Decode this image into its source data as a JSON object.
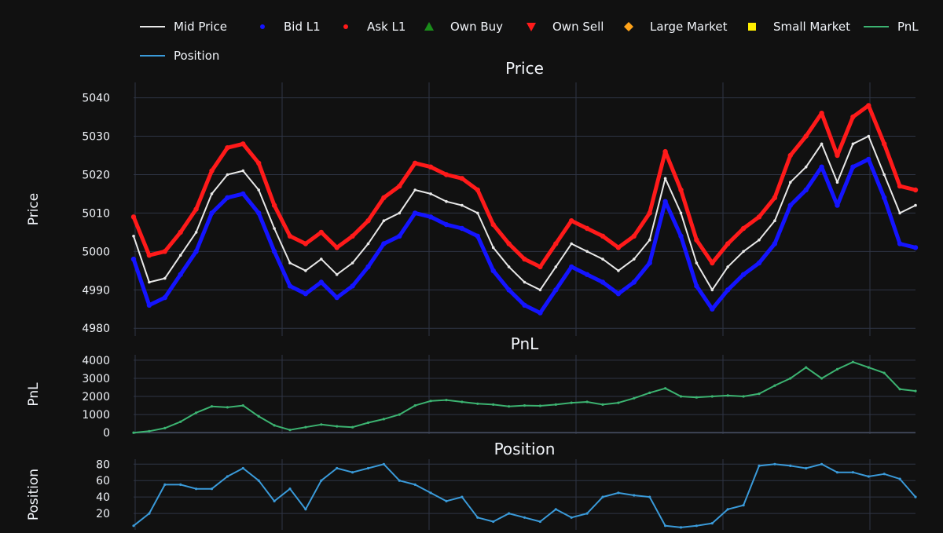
{
  "colors": {
    "page_bg": "#111111",
    "plot_bg": "#111111",
    "grid": "#2f3545",
    "text": "#f2f5fa",
    "mid": "#e8e8e8",
    "bid": "#1414ff",
    "ask": "#ff1a1a",
    "own_buy": "#1a8c1a",
    "own_sell": "#ff1a1a",
    "large_market": "#ffa31a",
    "small_market": "#ffee00",
    "pnl": "#3cb371",
    "position": "#3a9ad9"
  },
  "legend": [
    {
      "label": "Mid Price",
      "marker": "line",
      "color": "#e8e8e8"
    },
    {
      "label": "Bid L1",
      "marker": "dot",
      "color": "#1414ff"
    },
    {
      "label": "Ask L1",
      "marker": "dot",
      "color": "#ff1a1a"
    },
    {
      "label": "Own Buy",
      "marker": "triangle-up",
      "color": "#1a8c1a"
    },
    {
      "label": "Own Sell",
      "marker": "triangle-down",
      "color": "#ff1a1a"
    },
    {
      "label": "Large Market",
      "marker": "diamond",
      "color": "#ffa31a"
    },
    {
      "label": "Small Market",
      "marker": "square",
      "color": "#ffee00"
    },
    {
      "label": "PnL",
      "marker": "line",
      "color": "#3cb371"
    },
    {
      "label": "Position",
      "marker": "line",
      "color": "#3a9ad9"
    }
  ],
  "chart_data": [
    {
      "type": "line",
      "title": "Price",
      "ylabel": "Price",
      "ylim": [
        4978,
        5044
      ],
      "yticks": [
        4980,
        4990,
        5000,
        5010,
        5020,
        5030,
        5040
      ],
      "xlim": [
        0,
        100
      ],
      "grid": true,
      "series": [
        {
          "name": "Mid Price",
          "x": [
            0,
            2,
            4,
            6,
            8,
            10,
            12,
            14,
            16,
            18,
            20,
            22,
            24,
            26,
            28,
            30,
            32,
            34,
            36,
            38,
            40,
            42,
            44,
            46,
            48,
            50,
            52,
            54,
            56,
            58,
            60,
            62,
            64,
            66,
            68,
            70,
            72,
            74,
            76,
            78,
            80,
            82,
            84,
            86,
            88,
            90,
            92,
            94,
            96,
            98,
            100
          ],
          "values": [
            5004,
            4992,
            4993,
            4999,
            5005,
            5015,
            5020,
            5021,
            5016,
            5006,
            4997,
            4995,
            4998,
            4994,
            4997,
            5002,
            5008,
            5010,
            5016,
            5015,
            5013,
            5012,
            5010,
            5001,
            4996,
            4992,
            4990,
            4996,
            5002,
            5000,
            4998,
            4995,
            4998,
            5003,
            5019,
            5010,
            4997,
            4990,
            4996,
            5000,
            5003,
            5008,
            5018,
            5022,
            5028,
            5018,
            5028,
            5030,
            5020,
            5010,
            5012
          ]
        },
        {
          "name": "Bid L1",
          "x": [
            0,
            2,
            4,
            6,
            8,
            10,
            12,
            14,
            16,
            18,
            20,
            22,
            24,
            26,
            28,
            30,
            32,
            34,
            36,
            38,
            40,
            42,
            44,
            46,
            48,
            50,
            52,
            54,
            56,
            58,
            60,
            62,
            64,
            66,
            68,
            70,
            72,
            74,
            76,
            78,
            80,
            82,
            84,
            86,
            88,
            90,
            92,
            94,
            96,
            98,
            100
          ],
          "values": [
            4998,
            4986,
            4988,
            4994,
            5000,
            5010,
            5014,
            5015,
            5010,
            5000,
            4991,
            4989,
            4992,
            4988,
            4991,
            4996,
            5002,
            5004,
            5010,
            5009,
            5007,
            5006,
            5004,
            4995,
            4990,
            4986,
            4984,
            4990,
            4996,
            4994,
            4992,
            4989,
            4992,
            4997,
            5013,
            5004,
            4991,
            4985,
            4990,
            4994,
            4997,
            5002,
            5012,
            5016,
            5022,
            5012,
            5022,
            5024,
            5014,
            5002,
            5001
          ]
        },
        {
          "name": "Ask L1",
          "x": [
            0,
            2,
            4,
            6,
            8,
            10,
            12,
            14,
            16,
            18,
            20,
            22,
            24,
            26,
            28,
            30,
            32,
            34,
            36,
            38,
            40,
            42,
            44,
            46,
            48,
            50,
            52,
            54,
            56,
            58,
            60,
            62,
            64,
            66,
            68,
            70,
            72,
            74,
            76,
            78,
            80,
            82,
            84,
            86,
            88,
            90,
            92,
            94,
            96,
            98,
            100
          ],
          "values": [
            5009,
            4999,
            5000,
            5005,
            5011,
            5021,
            5027,
            5028,
            5023,
            5012,
            5004,
            5002,
            5005,
            5001,
            5004,
            5008,
            5014,
            5017,
            5023,
            5022,
            5020,
            5019,
            5016,
            5007,
            5002,
            4998,
            4996,
            5002,
            5008,
            5006,
            5004,
            5001,
            5004,
            5010,
            5026,
            5016,
            5003,
            4997,
            5002,
            5006,
            5009,
            5014,
            5025,
            5030,
            5036,
            5025,
            5035,
            5038,
            5028,
            5017,
            5016
          ]
        }
      ]
    },
    {
      "type": "line",
      "title": "PnL",
      "ylabel": "PnL",
      "ylim": [
        -80,
        4300
      ],
      "yticks": [
        0,
        1000,
        2000,
        3000,
        4000
      ],
      "xlim": [
        0,
        100
      ],
      "grid": true,
      "series": [
        {
          "name": "PnL",
          "x": [
            0,
            2,
            4,
            6,
            8,
            10,
            12,
            14,
            16,
            18,
            20,
            22,
            24,
            26,
            28,
            30,
            32,
            34,
            36,
            38,
            40,
            42,
            44,
            46,
            48,
            50,
            52,
            54,
            56,
            58,
            60,
            62,
            64,
            66,
            68,
            70,
            72,
            74,
            76,
            78,
            80,
            82,
            84,
            86,
            88,
            90,
            92,
            94,
            96,
            98,
            100
          ],
          "values": [
            0,
            80,
            250,
            600,
            1100,
            1450,
            1400,
            1500,
            900,
            400,
            150,
            300,
            450,
            350,
            300,
            550,
            750,
            1000,
            1500,
            1750,
            1800,
            1700,
            1600,
            1550,
            1450,
            1500,
            1480,
            1550,
            1650,
            1700,
            1550,
            1650,
            1900,
            2200,
            2450,
            2000,
            1950,
            2000,
            2050,
            2000,
            2150,
            2600,
            3000,
            3600,
            3000,
            3500,
            3900,
            3600,
            3300,
            2400,
            2300
          ]
        }
      ]
    },
    {
      "type": "line",
      "title": "Position",
      "ylabel": "Position",
      "ylim": [
        0,
        86
      ],
      "yticks": [
        20,
        40,
        60,
        80
      ],
      "xlim": [
        0,
        100
      ],
      "grid": true,
      "series": [
        {
          "name": "Position",
          "x": [
            0,
            2,
            4,
            6,
            8,
            10,
            12,
            14,
            16,
            18,
            20,
            22,
            24,
            26,
            28,
            30,
            32,
            34,
            36,
            38,
            40,
            42,
            44,
            46,
            48,
            50,
            52,
            54,
            56,
            58,
            60,
            62,
            64,
            66,
            68,
            70,
            72,
            74,
            76,
            78,
            80,
            82,
            84,
            86,
            88,
            90,
            92,
            94,
            96,
            98,
            100
          ],
          "values": [
            5,
            20,
            55,
            55,
            50,
            50,
            65,
            75,
            60,
            35,
            50,
            25,
            60,
            75,
            70,
            75,
            80,
            60,
            55,
            45,
            35,
            40,
            15,
            10,
            20,
            15,
            10,
            25,
            15,
            20,
            40,
            45,
            42,
            40,
            5,
            3,
            5,
            8,
            25,
            30,
            78,
            80,
            78,
            75,
            80,
            70,
            70,
            65,
            68,
            62,
            40
          ]
        }
      ]
    }
  ]
}
